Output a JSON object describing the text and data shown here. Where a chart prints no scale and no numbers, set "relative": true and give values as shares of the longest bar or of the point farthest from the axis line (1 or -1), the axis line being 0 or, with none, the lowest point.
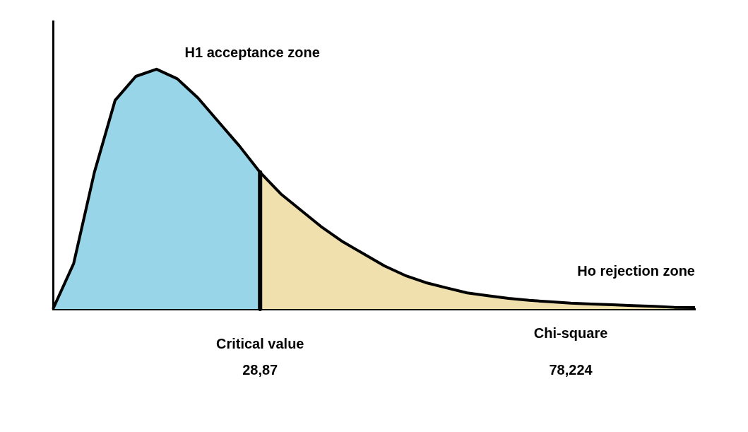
{
  "chart_data": {
    "type": "area",
    "relative": true,
    "legend": false,
    "grid": false,
    "marker": "none",
    "categories": [
      null,
      null,
      null,
      null,
      null,
      null,
      null,
      null,
      null,
      null,
      "28,87",
      null,
      null,
      null,
      null,
      null,
      null,
      null,
      null,
      null,
      null,
      null,
      null,
      null,
      null,
      "78,224",
      null,
      null,
      null,
      null,
      null,
      null
    ],
    "series": [
      {
        "name": "H1 acceptance zone",
        "color": "#99d5e8",
        "values": [
          0,
          0.19,
          0.57,
          0.87,
          0.97,
          1,
          0.96,
          0.88,
          0.78,
          0.68,
          0.57,
          null,
          null,
          null,
          null,
          null,
          null,
          null,
          null,
          null,
          null,
          null,
          null,
          null,
          null,
          null,
          null,
          null,
          null,
          null,
          null,
          null
        ]
      },
      {
        "name": "Ho rejection zone",
        "color": "#efe0ae",
        "values": [
          null,
          null,
          null,
          null,
          null,
          null,
          null,
          null,
          null,
          null,
          0.57,
          0.48,
          0.41,
          0.34,
          0.28,
          0.23,
          0.18,
          0.14,
          0.11,
          0.088,
          0.067,
          0.055,
          0.044,
          0.036,
          0.03,
          0.024,
          0.021,
          0.018,
          0.014,
          0.011,
          0.007,
          0.006
        ]
      }
    ],
    "ref_lines": [
      {
        "axis": "x",
        "value": "28,87",
        "label": "Critical value",
        "color": "#000000"
      }
    ],
    "annotations": [
      "Chi-square"
    ]
  }
}
